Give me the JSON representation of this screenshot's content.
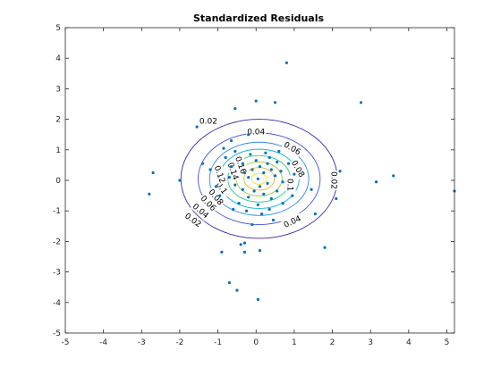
{
  "chart_data": {
    "type": "scatter",
    "title": "Standardized Residuals",
    "xlabel": "",
    "ylabel": "",
    "xlim": [
      -5,
      5.2
    ],
    "ylim": [
      -5,
      5
    ],
    "xticks": [
      -5,
      -4,
      -3,
      -2,
      -1,
      0,
      1,
      2,
      3,
      4,
      5
    ],
    "yticks": [
      -5,
      -4,
      -3,
      -2,
      -1,
      0,
      1,
      2,
      3,
      4,
      5
    ],
    "grid": false,
    "legend": "none",
    "contours": [
      {
        "level": 0.02,
        "label": "0.02",
        "rx": 2.05,
        "ry": 1.95,
        "color": "#3e26a8"
      },
      {
        "level": 0.04,
        "label": "0.04",
        "rx": 1.6,
        "ry": 1.5,
        "color": "#4352e0"
      },
      {
        "level": 0.06,
        "label": "0.06",
        "rx": 1.3,
        "ry": 1.2,
        "color": "#2e87f0"
      },
      {
        "level": 0.08,
        "label": "0.08",
        "rx": 1.05,
        "ry": 0.97,
        "color": "#13b5d8"
      },
      {
        "level": 0.1,
        "label": "0.1",
        "rx": 0.82,
        "ry": 0.76,
        "color": "#28c98e"
      },
      {
        "level": 0.12,
        "label": "0.12",
        "rx": 0.6,
        "ry": 0.56,
        "color": "#9fc83a"
      },
      {
        "level": 0.14,
        "label": "0.14",
        "rx": 0.4,
        "ry": 0.37,
        "color": "#f2b72f"
      },
      {
        "level": 0.16,
        "label": "0.16",
        "rx": 0.2,
        "ry": 0.18,
        "color": "#f5e028"
      }
    ],
    "contour_center": [
      0.08,
      0.05
    ],
    "contour_labels": [
      {
        "text": "0.02",
        "x": -1.25,
        "y": 1.95,
        "rot": 0
      },
      {
        "text": "0.04",
        "x": 0.0,
        "y": 1.6,
        "rot": 0
      },
      {
        "text": "0.06",
        "x": 0.95,
        "y": 1.05,
        "rot": 30
      },
      {
        "text": "0.08",
        "x": 1.1,
        "y": 0.38,
        "rot": 60
      },
      {
        "text": "0.1",
        "x": 0.9,
        "y": -0.15,
        "rot": 90
      },
      {
        "text": "0.02",
        "x": 2.05,
        "y": 0.0,
        "rot": 90
      },
      {
        "text": "0.04",
        "x": 0.95,
        "y": -1.35,
        "rot": -25
      },
      {
        "text": "0.02",
        "x": -1.65,
        "y": -1.3,
        "rot": 35
      },
      {
        "text": "0.04",
        "x": -1.45,
        "y": -1.0,
        "rot": 40
      },
      {
        "text": "0.06",
        "x": -1.25,
        "y": -0.75,
        "rot": 45
      },
      {
        "text": "0.08",
        "x": -1.05,
        "y": -0.55,
        "rot": 50
      },
      {
        "text": "0.1",
        "x": -0.9,
        "y": -0.25,
        "rot": 55
      },
      {
        "text": "0.12",
        "x": -0.95,
        "y": 0.2,
        "rot": 70
      },
      {
        "text": "0.14",
        "x": -0.6,
        "y": 0.3,
        "rot": 70
      },
      {
        "text": "0.16",
        "x": -0.4,
        "y": 0.5,
        "rot": 70
      }
    ],
    "points": [
      [
        0.8,
        3.85
      ],
      [
        -0.55,
        2.35
      ],
      [
        0.0,
        2.6
      ],
      [
        0.5,
        2.55
      ],
      [
        2.75,
        2.55
      ],
      [
        -1.55,
        1.75
      ],
      [
        -0.2,
        1.5
      ],
      [
        -0.65,
        1.3
      ],
      [
        -2.7,
        0.25
      ],
      [
        -2.8,
        -0.45
      ],
      [
        -2.0,
        0.0
      ],
      [
        2.2,
        0.3
      ],
      [
        3.15,
        -0.05
      ],
      [
        3.6,
        0.15
      ],
      [
        5.2,
        -0.35
      ],
      [
        2.1,
        -0.6
      ],
      [
        1.45,
        -0.3
      ],
      [
        1.55,
        -1.1
      ],
      [
        -0.1,
        -1.45
      ],
      [
        -0.4,
        -2.1
      ],
      [
        -0.3,
        -2.05
      ],
      [
        -0.9,
        -2.35
      ],
      [
        -0.3,
        -2.35
      ],
      [
        0.1,
        -2.3
      ],
      [
        -0.7,
        -3.35
      ],
      [
        -0.5,
        -3.6
      ],
      [
        0.05,
        -3.9
      ],
      [
        1.8,
        -2.2
      ],
      [
        -1.4,
        0.55
      ],
      [
        -1.2,
        0.35
      ],
      [
        -1.05,
        -0.2
      ],
      [
        -0.95,
        -0.5
      ],
      [
        -0.8,
        0.75
      ],
      [
        -0.55,
        0.95
      ],
      [
        -0.35,
        0.55
      ],
      [
        -0.3,
        0.25
      ],
      [
        -0.2,
        0.1
      ],
      [
        -0.1,
        0.35
      ],
      [
        0.0,
        0.65
      ],
      [
        0.1,
        0.45
      ],
      [
        0.2,
        0.25
      ],
      [
        0.3,
        0.55
      ],
      [
        0.35,
        0.75
      ],
      [
        0.4,
        0.35
      ],
      [
        0.55,
        0.6
      ],
      [
        0.5,
        0.15
      ],
      [
        0.65,
        0.3
      ],
      [
        0.7,
        -0.05
      ],
      [
        0.55,
        -0.35
      ],
      [
        0.4,
        -0.6
      ],
      [
        0.2,
        -0.45
      ],
      [
        0.1,
        -0.2
      ],
      [
        -0.05,
        -0.35
      ],
      [
        -0.2,
        -0.55
      ],
      [
        -0.35,
        -0.3
      ],
      [
        -0.45,
        -0.75
      ],
      [
        -0.6,
        -0.95
      ],
      [
        -0.25,
        -1.0
      ],
      [
        0.05,
        -0.8
      ],
      [
        0.35,
        -0.95
      ],
      [
        0.7,
        -0.75
      ],
      [
        0.85,
        0.55
      ],
      [
        1.0,
        0.2
      ],
      [
        0.95,
        -0.5
      ],
      [
        -0.7,
        0.1
      ],
      [
        -0.55,
        -0.15
      ],
      [
        0.25,
        0.9
      ],
      [
        0.6,
        0.95
      ],
      [
        -0.15,
        0.85
      ],
      [
        0.15,
        -1.1
      ],
      [
        -0.85,
        1.05
      ],
      [
        0.45,
        -1.3
      ],
      [
        -0.65,
        0.45
      ],
      [
        0.05,
        0.05
      ],
      [
        0.3,
        -0.1
      ]
    ]
  }
}
